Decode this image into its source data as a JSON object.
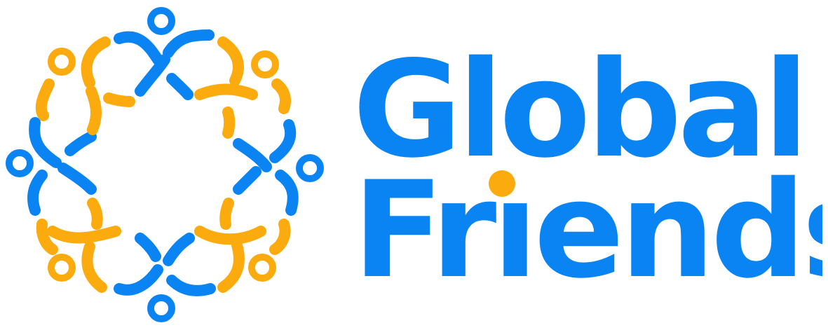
{
  "brand": {
    "name_line1": "Global",
    "name_line2_prefix": "Fr",
    "name_line2_dotless_i": "ı",
    "name_line2_suffix": "ends"
  },
  "colors": {
    "primary_blue": "#0a84f2",
    "accent_yellow": "#fbab0d"
  },
  "icons": {
    "emblem": "circle-of-people-icon",
    "i_dot": "yellow-dot-icon"
  }
}
